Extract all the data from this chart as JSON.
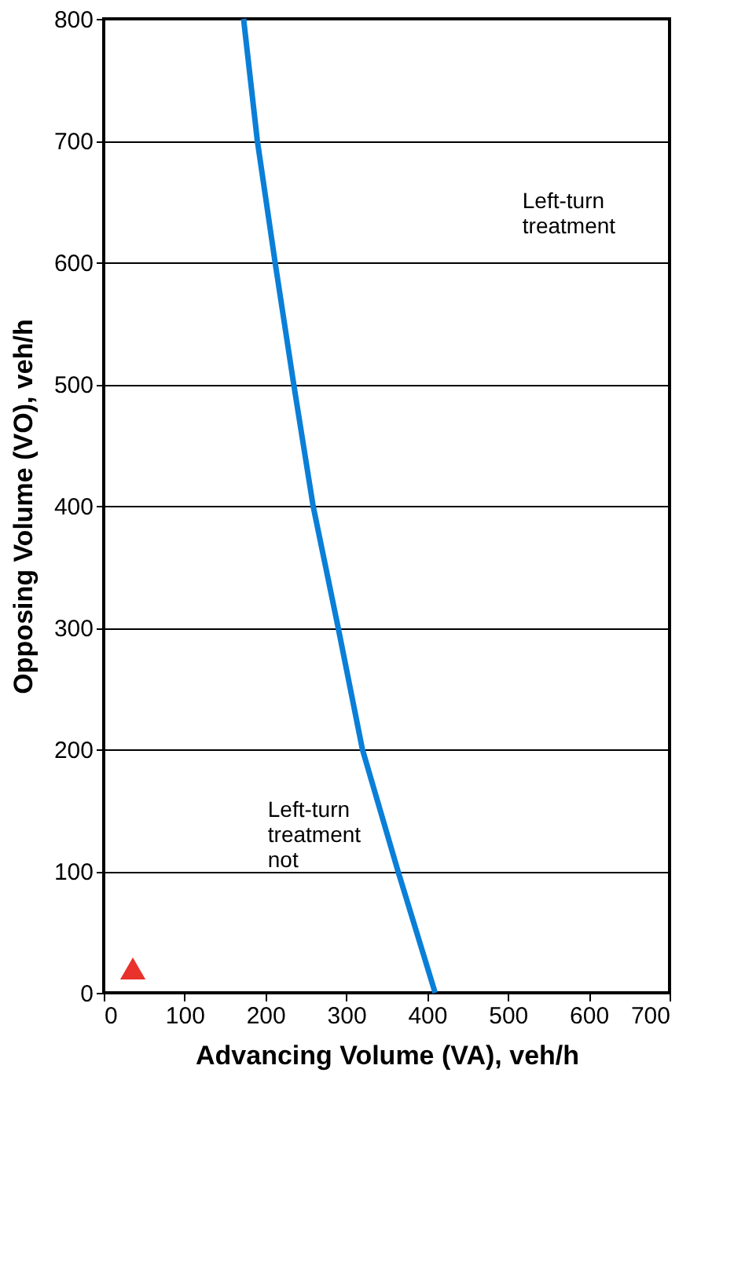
{
  "chart_data": {
    "type": "line",
    "xlabel": "Advancing Volume (VA), veh/h",
    "ylabel": "Opposing Volume (VO), veh/h",
    "xlim": [
      0,
      700
    ],
    "ylim": [
      0,
      800
    ],
    "xticks": [
      0,
      100,
      200,
      300,
      400,
      500,
      600,
      700
    ],
    "yticks": [
      0,
      100,
      200,
      300,
      400,
      500,
      600,
      700,
      800
    ],
    "grid": "y",
    "series": [
      {
        "color": "#0a7fd8",
        "x": [
          173,
          190,
          212,
          235,
          259,
          290,
          320,
          364,
          410
        ],
        "values": [
          800,
          700,
          600,
          500,
          400,
          300,
          200,
          100,
          0
        ],
        "marker": "none"
      },
      {
        "type": "scatter",
        "color": "#e8322b",
        "x": [
          36
        ],
        "values": [
          20
        ],
        "marker": "triangle"
      }
    ],
    "annotations": [
      "Left-turn treatment",
      "Left-turn treatment not"
    ]
  }
}
